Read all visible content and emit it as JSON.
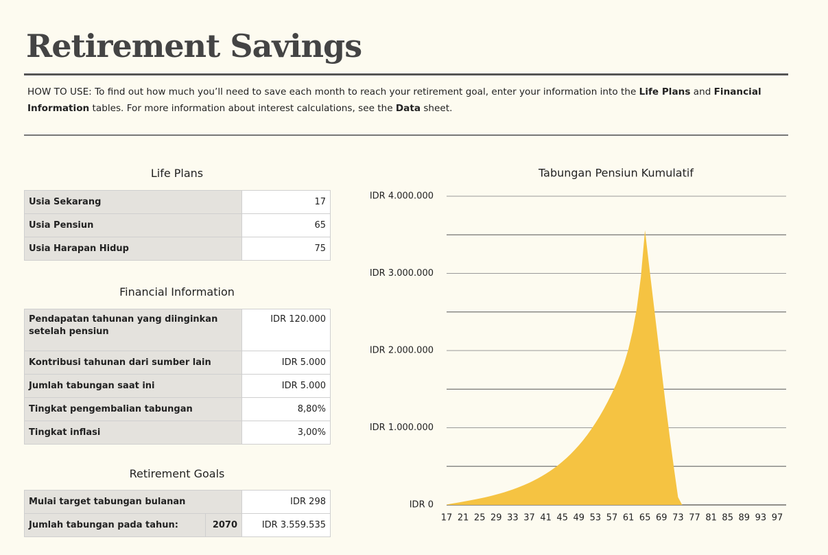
{
  "header": {
    "title": "Retirement Savings",
    "instructions": [
      "HOW TO USE: To find out how much you’ll need to save each month to reach your retirement goal, enter your information into the ",
      "Life Plans",
      " and ",
      "Financial Information",
      " tables. For more information about interest calculations, see the ",
      "Data",
      " sheet."
    ]
  },
  "life_plans": {
    "title": "Life Plans",
    "rows": [
      [
        "Usia Sekarang",
        17
      ],
      [
        "Usia Pensiun",
        65
      ],
      [
        "Usia Harapan Hidup",
        75
      ]
    ]
  },
  "financial_information": {
    "title": "Financial Information",
    "rows": [
      [
        "Pendapatan tahunan yang diinginkan setelah pensiun",
        "IDR 120.000"
      ],
      [
        "Kontribusi tahunan dari sumber lain",
        "IDR 5.000"
      ],
      [
        "Jumlah tabungan saat ini",
        "IDR 5.000"
      ],
      [
        "Tingkat pengembalian tabungan",
        "8,80%"
      ],
      [
        "Tingkat inflasi",
        "3,00%"
      ]
    ]
  },
  "retirement_goals": {
    "title": "Retirement Goals",
    "rows": [
      [
        "Mulai target tabungan bulanan",
        "IDR 298"
      ],
      [
        "Jumlah tabungan pada tahun:",
        2070,
        "IDR 3.559.535"
      ]
    ]
  },
  "chart_data": {
    "type": "area",
    "title": "Tabungan Pensiun Kumulatif",
    "color": "#f5c342",
    "categories": [
      17,
      null,
      null,
      null,
      21,
      null,
      null,
      null,
      25,
      null,
      null,
      null,
      29,
      null,
      null,
      null,
      33,
      null,
      null,
      null,
      37,
      null,
      null,
      null,
      41,
      null,
      null,
      null,
      45,
      null,
      null,
      null,
      49,
      null,
      null,
      null,
      53,
      null,
      null,
      null,
      57,
      null,
      null,
      null,
      61,
      null,
      null,
      null,
      65,
      null,
      null,
      null,
      69,
      null,
      null,
      null,
      73,
      null,
      null,
      null,
      77,
      null,
      null,
      null,
      81,
      null,
      null,
      null,
      85,
      null,
      null,
      null,
      89,
      null,
      null,
      null,
      93,
      null,
      null,
      null,
      97
    ],
    "values": [
      5000,
      14000,
      23000,
      32000,
      42000,
      52000,
      62000,
      72000,
      83000,
      95000,
      107000,
      120000,
      134000,
      149000,
      165000,
      182000,
      200000,
      220000,
      241000,
      263000,
      287000,
      313000,
      341000,
      371000,
      403000,
      438000,
      476000,
      516000,
      560000,
      607000,
      658000,
      713000,
      772000,
      836000,
      905000,
      980000,
      1060000,
      1146000,
      1239000,
      1339000,
      1447000,
      1560000,
      1690000,
      1840000,
      2020000,
      2250000,
      2540000,
      2950000,
      3559535,
      3100000,
      2650000,
      2200000,
      1750000,
      1300000,
      880000,
      480000,
      100000,
      0,
      0,
      0,
      0,
      0,
      0,
      0,
      0,
      0,
      0,
      0,
      0,
      0,
      0,
      0,
      0,
      0,
      0,
      0,
      0,
      0,
      0,
      0,
      0
    ],
    "ylim": [
      0,
      4000000
    ],
    "yticks": [
      {
        "value": 0,
        "label": "IDR 0"
      },
      {
        "value": 1000000,
        "label": "IDR 1.000.000"
      },
      {
        "value": 2000000,
        "label": "IDR 2.000.000"
      },
      {
        "value": 3000000,
        "label": "IDR 3.000.000"
      },
      {
        "value": 4000000,
        "label": "IDR 4.000.000"
      }
    ],
    "minor_yticks": [
      500000,
      1500000,
      2500000,
      3500000
    ],
    "grid": true
  }
}
